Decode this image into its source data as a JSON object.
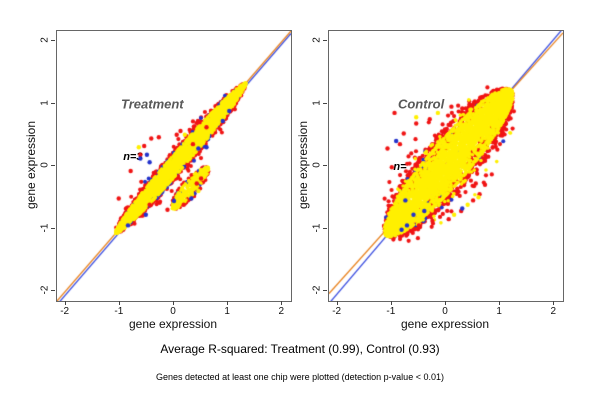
{
  "captions": {
    "r_squared": "Average R-squared: Treatment (0.99), Control (0.93)",
    "note": "Genes detected at least one chip were plotted (detection p-value < 0.01)"
  },
  "chart_data": {
    "type": "scatter",
    "description": "Two-panel replicate concordance scatter plots of gene expression with per-sample regression lines",
    "colors": {
      "yellow": "#FFF000",
      "red": "#F01414",
      "blue": "#2333CC",
      "line_orange": "#E8821E",
      "line_blue": "#3C4FE0",
      "label_gray": "#595959",
      "axis": "#666666"
    },
    "panels": [
      {
        "id": "treatment",
        "label": "Treatment",
        "annotation": "n=3",
        "average_r_squared": 0.99,
        "xlabel": "gene expression",
        "ylabel": "gene expression",
        "xlim": [
          -2.16,
          2.16
        ],
        "ylim": [
          -2.16,
          2.16
        ],
        "xticks": [
          -2,
          -1,
          0,
          1,
          2
        ],
        "yticks": [
          -2,
          -1,
          0,
          1,
          2
        ],
        "label_pos": [
          -0.4,
          1.0
        ],
        "annotation_pos": [
          -0.76,
          0.14
        ],
        "seed": 41,
        "lines": [
          {
            "color_key": "line_blue",
            "x1": -2.16,
            "y1": -2.22,
            "x2": 2.16,
            "y2": 2.12
          },
          {
            "color_key": "line_orange",
            "x1": -2.16,
            "y1": -2.16,
            "x2": 2.16,
            "y2": 2.16
          }
        ],
        "blobs": [
          {
            "color_key": "red",
            "n": 680,
            "cx": 0.125,
            "cy": 0.125,
            "len": 1.18,
            "w": 0.18,
            "r": 2.1,
            "dist": "rim"
          },
          {
            "color_key": "red",
            "n": 50,
            "cx": 0.1,
            "cy": 0.1,
            "len": 1.05,
            "w": 0.26,
            "r": 2.0,
            "dist": "rim"
          },
          {
            "color_key": "blue",
            "n": 150,
            "cx": 0.1,
            "cy": 0.1,
            "len": 1.12,
            "w": 0.16,
            "r": 2.0,
            "dist": "rim"
          },
          {
            "color_key": "red",
            "n": 90,
            "cx": 0.3,
            "cy": -0.35,
            "len": 0.32,
            "w": 0.15,
            "r": 2.0,
            "dist": "rim"
          },
          {
            "color_key": "blue",
            "n": 16,
            "cx": 0.3,
            "cy": -0.35,
            "len": 0.3,
            "w": 0.14,
            "r": 2.0,
            "dist": "rim"
          },
          {
            "color_key": "yellow",
            "n": 2600,
            "cx": 0.125,
            "cy": 0.125,
            "len": 1.2,
            "w": 0.13,
            "r": 1.7,
            "dist": "core"
          },
          {
            "color_key": "yellow",
            "n": 300,
            "cx": 0.3,
            "cy": -0.35,
            "len": 0.33,
            "w": 0.11,
            "r": 1.7,
            "dist": "core"
          }
        ],
        "outliers": {
          "red": [
            [
              -0.55,
              0.32
            ],
            [
              -0.42,
              0.44
            ],
            [
              -0.28,
              0.46
            ],
            [
              -0.62,
              0.18
            ],
            [
              -0.8,
              -0.08
            ],
            [
              -1.02,
              -0.52
            ],
            [
              0.12,
              0.56
            ],
            [
              0.35,
              0.35
            ],
            [
              0.5,
              -0.2
            ],
            [
              0.42,
              -0.28
            ],
            [
              0.18,
              -0.62
            ],
            [
              -0.12,
              -0.7
            ],
            [
              -0.45,
              -0.62
            ],
            [
              0.6,
              0.62
            ],
            [
              0.05,
              0.5
            ]
          ],
          "blue": [
            [
              -0.62,
              0.12
            ],
            [
              -0.5,
              0.18
            ],
            [
              -0.45,
              0.06
            ],
            [
              0.45,
              0.28
            ],
            [
              0.9,
              0.72
            ],
            [
              1.02,
              0.88
            ],
            [
              -0.52,
              -0.78
            ],
            [
              0.0,
              -0.56
            ],
            [
              0.32,
              -0.52
            ],
            [
              -0.85,
              -0.95
            ],
            [
              0.6,
              0.3
            ]
          ],
          "yellow": [
            [
              -0.65,
              0.3
            ],
            [
              0.2,
              0.5
            ],
            [
              -0.5,
              -0.55
            ],
            [
              0.45,
              -0.4
            ]
          ]
        }
      },
      {
        "id": "control",
        "label": "Control",
        "annotation": "n=",
        "average_r_squared": 0.93,
        "xlabel": "gene expression",
        "ylabel": "gene expression",
        "xlim": [
          -2.16,
          2.16
        ],
        "ylim": [
          -2.16,
          2.16
        ],
        "xticks": [
          -2,
          -1,
          0,
          1,
          2
        ],
        "yticks": [
          -2,
          -1,
          0,
          1,
          2
        ],
        "label_pos": [
          -0.46,
          0.99
        ],
        "annotation_pos": [
          -0.85,
          -0.02
        ],
        "seed": 97,
        "lines": [
          {
            "color_key": "line_blue",
            "x1": -2.16,
            "y1": -2.2,
            "x2": 2.16,
            "y2": 2.2
          },
          {
            "color_key": "line_orange",
            "x1": -2.16,
            "y1": -2.04,
            "x2": 2.16,
            "y2": 2.13
          }
        ],
        "blobs": [
          {
            "color_key": "red",
            "n": 1000,
            "cx": 0.05,
            "cy": 0.05,
            "len": 1.15,
            "w": 0.46,
            "r": 2.1,
            "dist": "rim"
          },
          {
            "color_key": "red",
            "n": 120,
            "cx": 0.05,
            "cy": 0.05,
            "len": 1.08,
            "w": 0.58,
            "r": 2.1,
            "dist": "rim"
          },
          {
            "color_key": "blue",
            "n": 40,
            "cx": -0.05,
            "cy": -0.05,
            "len": 1.05,
            "w": 0.46,
            "r": 2.0,
            "dist": "rim"
          },
          {
            "color_key": "blue",
            "n": 22,
            "cx": -0.8,
            "cy": -0.88,
            "len": 0.22,
            "w": 0.1,
            "r": 2.0,
            "dist": "rim"
          },
          {
            "color_key": "yellow",
            "n": 3200,
            "cx": 0.05,
            "cy": 0.05,
            "len": 1.16,
            "w": 0.34,
            "r": 1.8,
            "dist": "core"
          },
          {
            "color_key": "yellow",
            "n": 250,
            "cx": 0.05,
            "cy": 0.05,
            "len": 1.1,
            "w": 0.44,
            "r": 1.8,
            "dist": "rim"
          }
        ],
        "outliers": {
          "red": [
            [
              -0.95,
              0.85
            ],
            [
              -0.78,
              0.52
            ],
            [
              -1.08,
              0.28
            ],
            [
              -1.0,
              -0.02
            ],
            [
              -0.85,
              0.35
            ],
            [
              0.1,
              0.95
            ],
            [
              0.3,
              0.92
            ],
            [
              -0.3,
              0.75
            ],
            [
              0.55,
              -0.28
            ],
            [
              0.72,
              -0.3
            ],
            [
              0.5,
              -0.55
            ],
            [
              0.28,
              -0.72
            ],
            [
              -0.25,
              -0.88
            ],
            [
              0.05,
              -0.85
            ],
            [
              0.78,
              0.15
            ],
            [
              0.62,
              -0.45
            ],
            [
              -0.55,
              0.68
            ],
            [
              -0.5,
              -0.95
            ]
          ],
          "blue": [
            [
              -0.82,
              -1.02
            ],
            [
              -0.72,
              -0.95
            ],
            [
              -0.6,
              -0.78
            ],
            [
              -0.4,
              -0.72
            ],
            [
              0.3,
              -0.68
            ],
            [
              -0.92,
              0.4
            ],
            [
              -0.75,
              -0.55
            ]
          ],
          "yellow": [
            [
              -0.55,
              0.78
            ],
            [
              -0.15,
              0.85
            ],
            [
              0.45,
              0.9
            ],
            [
              0.6,
              -0.5
            ],
            [
              -0.62,
              -0.88
            ],
            [
              0.15,
              -0.78
            ],
            [
              0.4,
              -0.62
            ]
          ]
        }
      }
    ]
  }
}
